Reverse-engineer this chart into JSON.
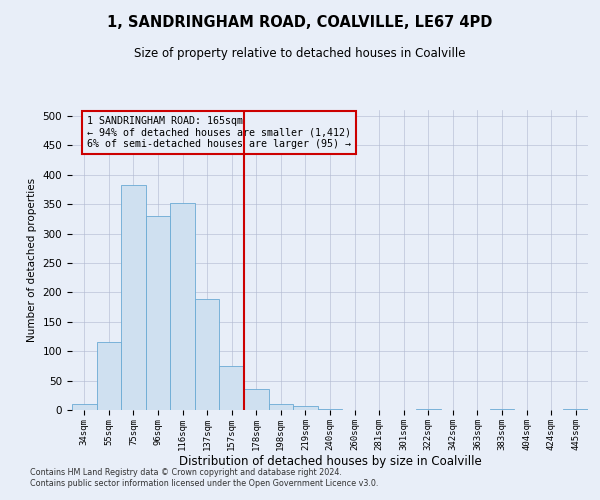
{
  "title": "1, SANDRINGHAM ROAD, COALVILLE, LE67 4PD",
  "subtitle": "Size of property relative to detached houses in Coalville",
  "xlabel": "Distribution of detached houses by size in Coalville",
  "ylabel": "Number of detached properties",
  "categories": [
    "34sqm",
    "55sqm",
    "75sqm",
    "96sqm",
    "116sqm",
    "137sqm",
    "157sqm",
    "178sqm",
    "198sqm",
    "219sqm",
    "240sqm",
    "260sqm",
    "281sqm",
    "301sqm",
    "322sqm",
    "342sqm",
    "363sqm",
    "383sqm",
    "404sqm",
    "424sqm",
    "445sqm"
  ],
  "values": [
    10,
    115,
    383,
    330,
    352,
    188,
    75,
    35,
    10,
    6,
    2,
    0,
    0,
    0,
    2,
    0,
    0,
    2,
    0,
    0,
    2
  ],
  "bar_color": "#cfe0f0",
  "bar_edge_color": "#6aaad4",
  "vline_x": 6.5,
  "vline_color": "#cc0000",
  "annotation_lines": [
    "1 SANDRINGHAM ROAD: 165sqm",
    "← 94% of detached houses are smaller (1,412)",
    "6% of semi-detached houses are larger (95) →"
  ],
  "annotation_box_color": "#cc0000",
  "ylim": [
    0,
    510
  ],
  "yticks": [
    0,
    50,
    100,
    150,
    200,
    250,
    300,
    350,
    400,
    450,
    500
  ],
  "grid_color": "#b0b8d0",
  "background_color": "#e8eef8",
  "footer_line1": "Contains HM Land Registry data © Crown copyright and database right 2024.",
  "footer_line2": "Contains public sector information licensed under the Open Government Licence v3.0."
}
